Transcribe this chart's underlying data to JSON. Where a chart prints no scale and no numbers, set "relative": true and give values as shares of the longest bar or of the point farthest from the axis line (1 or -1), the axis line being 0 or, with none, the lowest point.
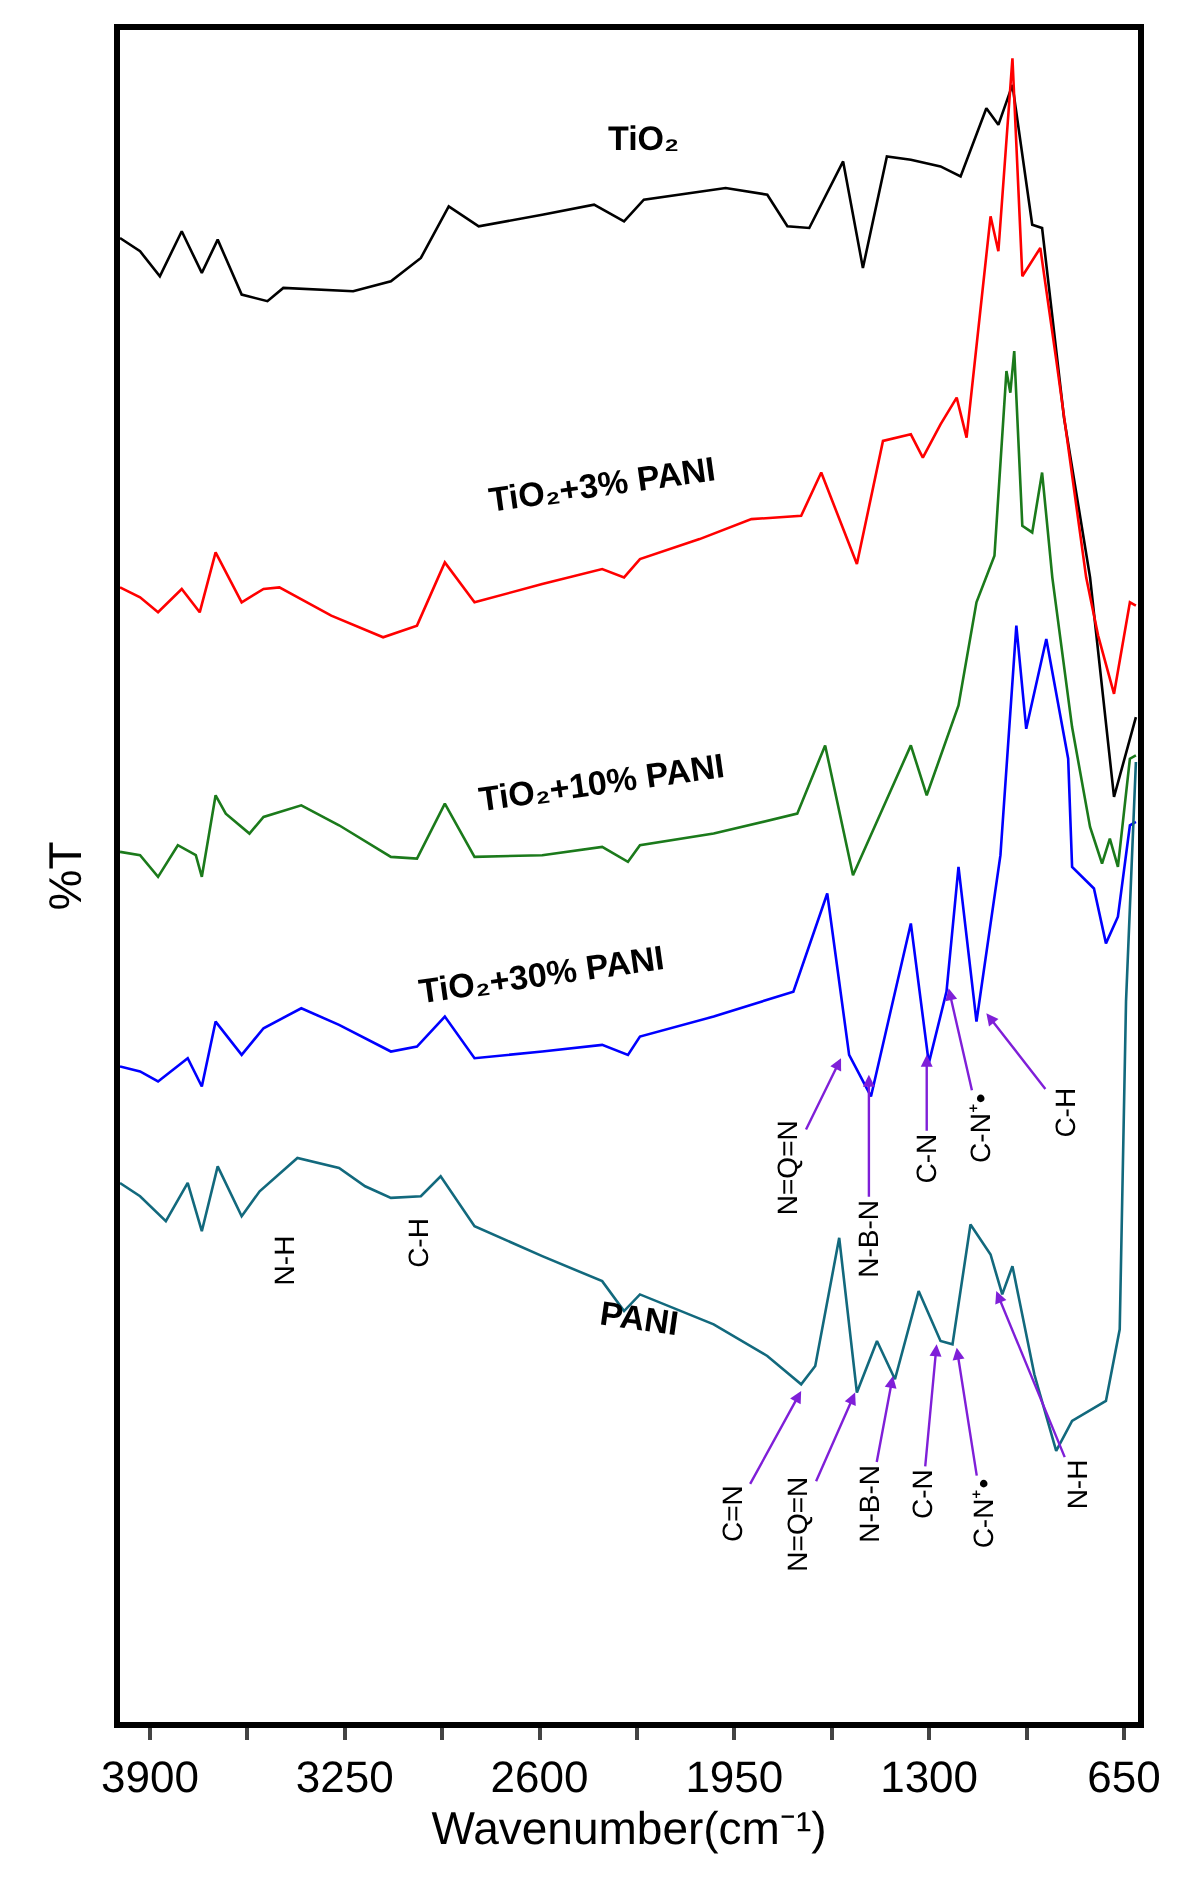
{
  "chart_data": {
    "type": "line",
    "relative": true,
    "ylabel": "%T",
    "xlabel": "Wavenumber(cm⁻¹)",
    "xlim": [
      4000,
      603
    ],
    "xticks": [
      3900,
      {
        "value": 3575,
        "label": null
      },
      3250,
      {
        "value": 2925,
        "label": null
      },
      2600,
      {
        "value": 2275,
        "label": null
      },
      1950,
      {
        "value": 1625,
        "label": null
      },
      1300,
      {
        "value": 975,
        "label": null
      },
      650
    ],
    "legend": false,
    "marker": "none",
    "line_style": "solid",
    "tick_labels": "x",
    "series": [
      {
        "name": "TiO₂",
        "color": "#000000",
        "x": [
          4000,
          3933,
          3867,
          3794,
          3727,
          3674,
          3594,
          3508,
          3455,
          3222,
          3096,
          2996,
          2903,
          2803,
          2591,
          2418,
          2318,
          2252,
          1979,
          1840,
          1773,
          1700,
          1587,
          1521,
          1441,
          1361,
          1262,
          1195,
          1109,
          1069,
          1022,
          956,
          923,
          850,
          763,
          683,
          610
        ],
        "values": [
          0.892,
          0.884,
          0.869,
          0.896,
          0.871,
          0.891,
          0.858,
          0.854,
          0.862,
          0.86,
          0.866,
          0.88,
          0.911,
          0.899,
          0.906,
          0.912,
          0.902,
          0.915,
          0.922,
          0.918,
          0.899,
          0.898,
          0.938,
          0.874,
          0.941,
          0.939,
          0.935,
          0.929,
          0.97,
          0.96,
          0.984,
          0.9,
          0.898,
          0.784,
          0.688,
          0.556,
          0.604
        ]
      },
      {
        "name": "TiO₂+3% PANI",
        "color": "#ff0000",
        "x": [
          4000,
          3933,
          3873,
          3794,
          3734,
          3681,
          3594,
          3521,
          3468,
          3295,
          3122,
          3009,
          2916,
          2817,
          2591,
          2391,
          2318,
          2265,
          2066,
          1893,
          1727,
          1660,
          1541,
          1454,
          1361,
          1321,
          1262,
          1208,
          1175,
          1095,
          1069,
          1022,
          989,
          929,
          876,
          776,
          736,
          683,
          630,
          610
        ],
        "values": [
          0.682,
          0.676,
          0.667,
          0.681,
          0.667,
          0.703,
          0.673,
          0.681,
          0.682,
          0.665,
          0.652,
          0.659,
          0.697,
          0.673,
          0.684,
          0.693,
          0.688,
          0.699,
          0.711,
          0.723,
          0.725,
          0.751,
          0.696,
          0.77,
          0.774,
          0.76,
          0.78,
          0.796,
          0.772,
          0.905,
          0.884,
          1.0,
          0.869,
          0.886,
          0.819,
          0.688,
          0.653,
          0.618,
          0.673,
          0.671
        ]
      },
      {
        "name": "TiO₂+10% PANI",
        "color": "#1b7a1b",
        "x": [
          4000,
          3933,
          3873,
          3807,
          3747,
          3727,
          3681,
          3647,
          3568,
          3521,
          3395,
          3269,
          3096,
          3009,
          2916,
          2817,
          2591,
          2391,
          2305,
          2265,
          2019,
          1740,
          1647,
          1554,
          1361,
          1308,
          1202,
          1142,
          1082,
          1042,
          1029,
          1016,
          989,
          956,
          923,
          889,
          823,
          763,
          723,
          697,
          670,
          630,
          610
        ],
        "values": [
          0.523,
          0.521,
          0.508,
          0.527,
          0.521,
          0.508,
          0.557,
          0.546,
          0.534,
          0.544,
          0.551,
          0.539,
          0.52,
          0.519,
          0.552,
          0.52,
          0.521,
          0.526,
          0.517,
          0.527,
          0.534,
          0.546,
          0.587,
          0.509,
          0.587,
          0.557,
          0.611,
          0.673,
          0.701,
          0.812,
          0.799,
          0.824,
          0.719,
          0.715,
          0.751,
          0.688,
          0.598,
          0.538,
          0.516,
          0.531,
          0.514,
          0.579,
          0.581
        ]
      },
      {
        "name": "TiO₂+30% PANI",
        "color": "#0000ff",
        "x": [
          4000,
          3933,
          3873,
          3774,
          3727,
          3681,
          3594,
          3521,
          3395,
          3269,
          3096,
          3009,
          2916,
          2817,
          2591,
          2391,
          2305,
          2265,
          2019,
          1753,
          1640,
          1567,
          1494,
          1361,
          1301,
          1242,
          1202,
          1142,
          1062,
          1009,
          976,
          909,
          836,
          823,
          750,
          710,
          670,
          630,
          610
        ],
        "values": [
          0.394,
          0.391,
          0.385,
          0.399,
          0.382,
          0.421,
          0.401,
          0.417,
          0.429,
          0.419,
          0.403,
          0.406,
          0.424,
          0.399,
          0.403,
          0.407,
          0.401,
          0.412,
          0.424,
          0.439,
          0.498,
          0.401,
          0.376,
          0.48,
          0.396,
          0.439,
          0.514,
          0.421,
          0.521,
          0.659,
          0.597,
          0.651,
          0.579,
          0.514,
          0.501,
          0.468,
          0.484,
          0.539,
          0.541
        ]
      },
      {
        "name": "PANI",
        "color": "#12697d",
        "x": [
          4000,
          3933,
          3847,
          3774,
          3727,
          3674,
          3594,
          3534,
          3408,
          3269,
          3182,
          3096,
          2996,
          2930,
          2817,
          2591,
          2391,
          2318,
          2265,
          2019,
          1840,
          1727,
          1680,
          1600,
          1541,
          1474,
          1414,
          1335,
          1262,
          1222,
          1162,
          1095,
          1056,
          1022,
          949,
          876,
          823,
          710,
          664,
          643,
          610
        ],
        "values": [
          0.324,
          0.316,
          0.301,
          0.324,
          0.295,
          0.334,
          0.304,
          0.319,
          0.339,
          0.333,
          0.322,
          0.315,
          0.316,
          0.328,
          0.298,
          0.28,
          0.265,
          0.247,
          0.257,
          0.239,
          0.22,
          0.203,
          0.214,
          0.291,
          0.198,
          0.229,
          0.206,
          0.259,
          0.229,
          0.227,
          0.299,
          0.281,
          0.257,
          0.274,
          0.209,
          0.163,
          0.181,
          0.193,
          0.236,
          0.433,
          0.577
        ]
      }
    ],
    "annotations": [
      {
        "text": "N=Q=N",
        "x": 1594,
        "y": 0.399
      },
      {
        "text": "N-B-N",
        "x": 1501,
        "y": 0.389
      },
      {
        "text": "C-N",
        "x": 1308,
        "y": 0.401
      },
      {
        "text": "C-N⁺•",
        "x": 1235,
        "y": 0.441
      },
      {
        "text": "C-H",
        "x": 1109,
        "y": 0.426
      },
      {
        "text": "C=N",
        "x": 1727,
        "y": 0.199
      },
      {
        "text": "N=Q=N",
        "x": 1547,
        "y": 0.198
      },
      {
        "text": "N-B-N",
        "x": 1421,
        "y": 0.208
      },
      {
        "text": "C-N",
        "x": 1275,
        "y": 0.227
      },
      {
        "text": "C-N⁺•",
        "x": 1208,
        "y": 0.225
      },
      {
        "text": "N-H",
        "x": 1076,
        "y": 0.259
      },
      "N-H",
      "C-H"
    ]
  }
}
